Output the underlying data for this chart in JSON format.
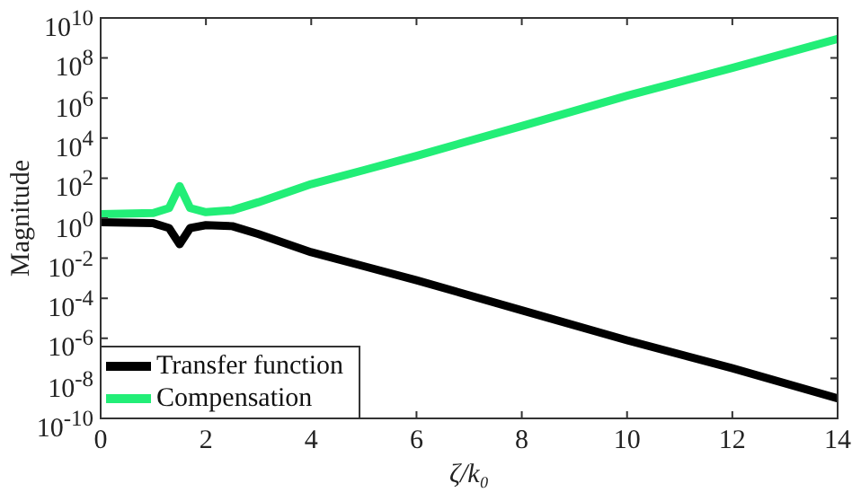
{
  "chart_data": {
    "type": "line",
    "xlabel": "ζ/k₀",
    "ylabel": "Magnitude",
    "log": "y",
    "grid": false,
    "legend": "bottom left",
    "marker": "none",
    "line_style": "solid",
    "xlim": [
      0,
      14
    ],
    "xticks": [
      0,
      2,
      4,
      6,
      8,
      10,
      12,
      14
    ],
    "ylim": [
      1e-10,
      10000000000.0
    ],
    "yticks": [
      {
        "value": 1e-10,
        "label": "10$^{-10}$"
      },
      {
        "value": 1e-08,
        "label": "10$^{-8}$"
      },
      {
        "value": 1e-06,
        "label": "10$^{-6}$"
      },
      {
        "value": 0.0001,
        "label": "10$^{-4}$"
      },
      {
        "value": 0.01,
        "label": "10$^{-2}$"
      },
      {
        "value": 1,
        "label": "10$^{0}$"
      },
      {
        "value": 100,
        "label": "10$^{2}$"
      },
      {
        "value": 10000.0,
        "label": "10$^{4}$"
      },
      {
        "value": 1000000.0,
        "label": "10$^{6}$"
      },
      {
        "value": 100000000.0,
        "label": "10$^{8}$"
      },
      {
        "value": 10000000000.0,
        "label": "10$^{10}$"
      }
    ],
    "x": [
      0,
      1,
      1.3,
      1.5,
      1.7,
      2,
      2.5,
      3,
      4,
      5,
      6,
      8,
      10,
      12,
      14
    ],
    "series": [
      {
        "name": "Transfer function",
        "color": "#000000",
        "values": [
          0.63,
          0.56,
          0.32,
          0.05,
          0.32,
          0.45,
          0.4,
          0.16,
          0.02,
          0.004,
          0.0008,
          2.5e-05,
          8e-07,
          3.2e-08,
          1e-09
        ]
      },
      {
        "name": "Compensation",
        "color": "#22ee77",
        "values": [
          1.6,
          1.8,
          3.2,
          40,
          3.2,
          2,
          2.5,
          6.3,
          50,
          250,
          1300,
          40000,
          1300000,
          32000000,
          900000000
        ]
      }
    ]
  }
}
